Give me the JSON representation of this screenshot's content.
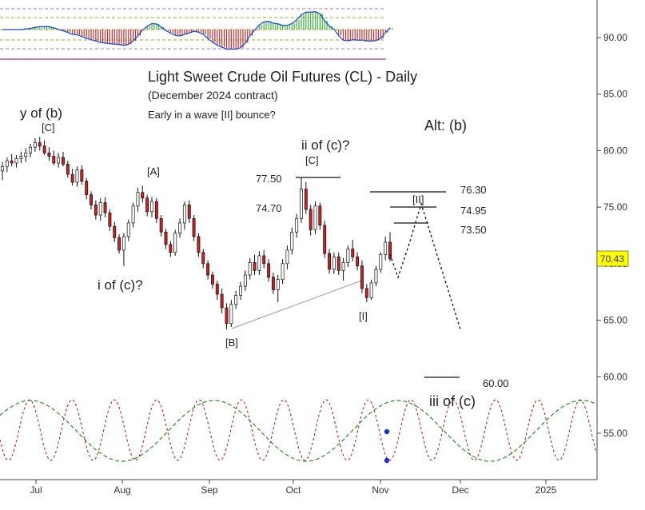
{
  "chart_data": {
    "type": "candlestick",
    "title": "Light Sweet Crude Oil Futures (CL) - Daily",
    "subtitle": "(December 2024 contract)",
    "note": "Early in a wave [II] bounce?",
    "y_ticks": [
      "90.00",
      "85.00",
      "80.00",
      "75.00",
      "70.00",
      "65.00",
      "60.00",
      "55.00"
    ],
    "x_ticks": [
      "Jul",
      "Aug",
      "Sep",
      "Oct",
      "Nov",
      "Dec",
      "2025"
    ],
    "ylim": [
      52,
      94
    ],
    "last_price": "70.43",
    "price_levels": [
      {
        "label": "77.50",
        "value": 77.5
      },
      {
        "label": "74.70",
        "value": 74.7
      },
      {
        "label": "76.30",
        "value": 76.3
      },
      {
        "label": "74.95",
        "value": 74.95
      },
      {
        "label": "73.50",
        "value": 73.5
      },
      {
        "label": "60.00",
        "value": 60.0
      }
    ],
    "wave_labels": [
      {
        "text": "y of (b)"
      },
      {
        "text": "[C]"
      },
      {
        "text": "[A]"
      },
      {
        "text": "i of (c)?"
      },
      {
        "text": "[B]"
      },
      {
        "text": "ii of (c)?"
      },
      {
        "text": "[C]"
      },
      {
        "text": "[I]"
      },
      {
        "text": "[II]"
      },
      {
        "text": "Alt: (b)"
      },
      {
        "text": "iii of (c)"
      }
    ],
    "series": [
      {
        "type": "candles",
        "ohlc": [
          [
            78.2,
            79.0,
            77.4,
            78.6
          ],
          [
            78.6,
            79.4,
            78.1,
            79.1
          ],
          [
            79.1,
            79.7,
            78.6,
            78.9
          ],
          [
            78.9,
            79.6,
            78.5,
            79.3
          ],
          [
            79.3,
            79.9,
            78.9,
            79.5
          ],
          [
            79.5,
            80.2,
            79.0,
            79.8
          ],
          [
            79.8,
            80.6,
            79.4,
            80.3
          ],
          [
            80.3,
            81.1,
            79.9,
            80.7
          ],
          [
            80.7,
            81.2,
            80.0,
            80.4
          ],
          [
            80.4,
            80.9,
            79.6,
            79.8
          ],
          [
            79.8,
            80.3,
            79.1,
            79.5
          ],
          [
            79.5,
            80.0,
            78.7,
            78.9
          ],
          [
            78.9,
            79.8,
            78.5,
            79.4
          ],
          [
            79.4,
            79.9,
            78.6,
            78.8
          ],
          [
            78.8,
            79.1,
            77.6,
            77.9
          ],
          [
            77.9,
            78.4,
            76.9,
            77.2
          ],
          [
            77.2,
            78.6,
            76.8,
            78.3
          ],
          [
            78.3,
            78.7,
            77.0,
            77.3
          ],
          [
            77.3,
            77.6,
            75.7,
            76.1
          ],
          [
            76.1,
            76.4,
            74.8,
            75.2
          ],
          [
            75.2,
            75.6,
            73.9,
            74.3
          ],
          [
            74.3,
            75.8,
            73.8,
            75.4
          ],
          [
            75.4,
            75.9,
            74.1,
            74.5
          ],
          [
            74.5,
            74.8,
            72.9,
            73.3
          ],
          [
            73.3,
            73.7,
            71.9,
            72.3
          ],
          [
            72.3,
            72.6,
            70.9,
            71.2
          ],
          [
            71.2,
            72.7,
            69.8,
            72.4
          ],
          [
            72.4,
            73.9,
            72.0,
            73.6
          ],
          [
            73.6,
            75.4,
            73.2,
            75.1
          ],
          [
            75.1,
            76.7,
            74.6,
            76.3
          ],
          [
            76.3,
            76.9,
            75.4,
            75.8
          ],
          [
            75.8,
            76.1,
            74.2,
            74.6
          ],
          [
            74.6,
            75.9,
            74.1,
            75.5
          ],
          [
            75.5,
            75.8,
            73.6,
            74.0
          ],
          [
            74.0,
            74.3,
            72.4,
            72.8
          ],
          [
            72.8,
            73.1,
            71.3,
            71.7
          ],
          [
            71.7,
            72.0,
            70.6,
            71.0
          ],
          [
            71.0,
            73.0,
            70.7,
            72.7
          ],
          [
            72.7,
            74.0,
            72.3,
            73.6
          ],
          [
            73.6,
            75.5,
            73.0,
            75.2
          ],
          [
            75.2,
            75.6,
            73.6,
            74.0
          ],
          [
            74.0,
            74.3,
            72.0,
            72.4
          ],
          [
            72.4,
            72.7,
            70.6,
            71.0
          ],
          [
            71.0,
            71.3,
            69.6,
            70.0
          ],
          [
            70.0,
            70.3,
            68.6,
            69.0
          ],
          [
            69.0,
            69.3,
            67.8,
            68.2
          ],
          [
            68.2,
            68.5,
            66.8,
            67.3
          ],
          [
            67.3,
            67.8,
            65.6,
            66.1
          ],
          [
            66.1,
            66.5,
            64.2,
            64.7
          ],
          [
            64.7,
            66.8,
            64.4,
            66.4
          ],
          [
            66.4,
            67.6,
            66.0,
            67.2
          ],
          [
            67.2,
            68.4,
            66.8,
            68.0
          ],
          [
            68.0,
            69.4,
            67.6,
            69.0
          ],
          [
            69.0,
            70.5,
            68.6,
            70.1
          ],
          [
            70.1,
            70.8,
            69.0,
            69.4
          ],
          [
            69.4,
            71.1,
            69.0,
            70.7
          ],
          [
            70.7,
            71.2,
            69.6,
            70.0
          ],
          [
            70.0,
            70.4,
            68.4,
            68.8
          ],
          [
            68.8,
            69.2,
            67.3,
            67.7
          ],
          [
            67.7,
            69.0,
            66.6,
            68.6
          ],
          [
            68.6,
            70.4,
            68.2,
            70.0
          ],
          [
            70.0,
            71.6,
            69.5,
            71.2
          ],
          [
            71.2,
            73.2,
            70.8,
            72.8
          ],
          [
            72.8,
            74.4,
            72.3,
            74.0
          ],
          [
            74.0,
            77.6,
            73.6,
            76.6
          ],
          [
            76.6,
            77.2,
            74.4,
            74.8
          ],
          [
            74.8,
            75.2,
            72.5,
            73.0
          ],
          [
            73.0,
            75.5,
            72.6,
            75.1
          ],
          [
            75.1,
            75.4,
            73.0,
            73.4
          ],
          [
            73.4,
            73.8,
            70.5,
            70.9
          ],
          [
            70.9,
            71.3,
            69.1,
            69.5
          ],
          [
            69.5,
            71.0,
            69.1,
            70.6
          ],
          [
            70.6,
            71.0,
            69.0,
            69.4
          ],
          [
            69.4,
            70.5,
            68.5,
            70.1
          ],
          [
            70.1,
            71.6,
            69.7,
            71.3
          ],
          [
            71.3,
            72.1,
            70.2,
            70.6
          ],
          [
            70.6,
            71.0,
            69.4,
            69.8
          ],
          [
            69.8,
            70.3,
            67.4,
            67.8
          ],
          [
            67.8,
            68.2,
            66.6,
            67.0
          ],
          [
            67.0,
            68.6,
            66.8,
            68.3
          ],
          [
            68.3,
            69.8,
            68.0,
            69.5
          ],
          [
            69.5,
            71.0,
            69.2,
            70.8
          ],
          [
            70.8,
            72.4,
            70.3,
            71.9
          ],
          [
            71.9,
            72.8,
            70.2,
            70.43
          ]
        ]
      }
    ]
  },
  "colors": {
    "up": "#ffffff",
    "down": "#cc1f1f",
    "wick": "#111111",
    "forecast": "#111111",
    "cycle_fast": "#b22222",
    "cycle_slow": "#2e8b2e",
    "price_box": "#ffff00"
  }
}
